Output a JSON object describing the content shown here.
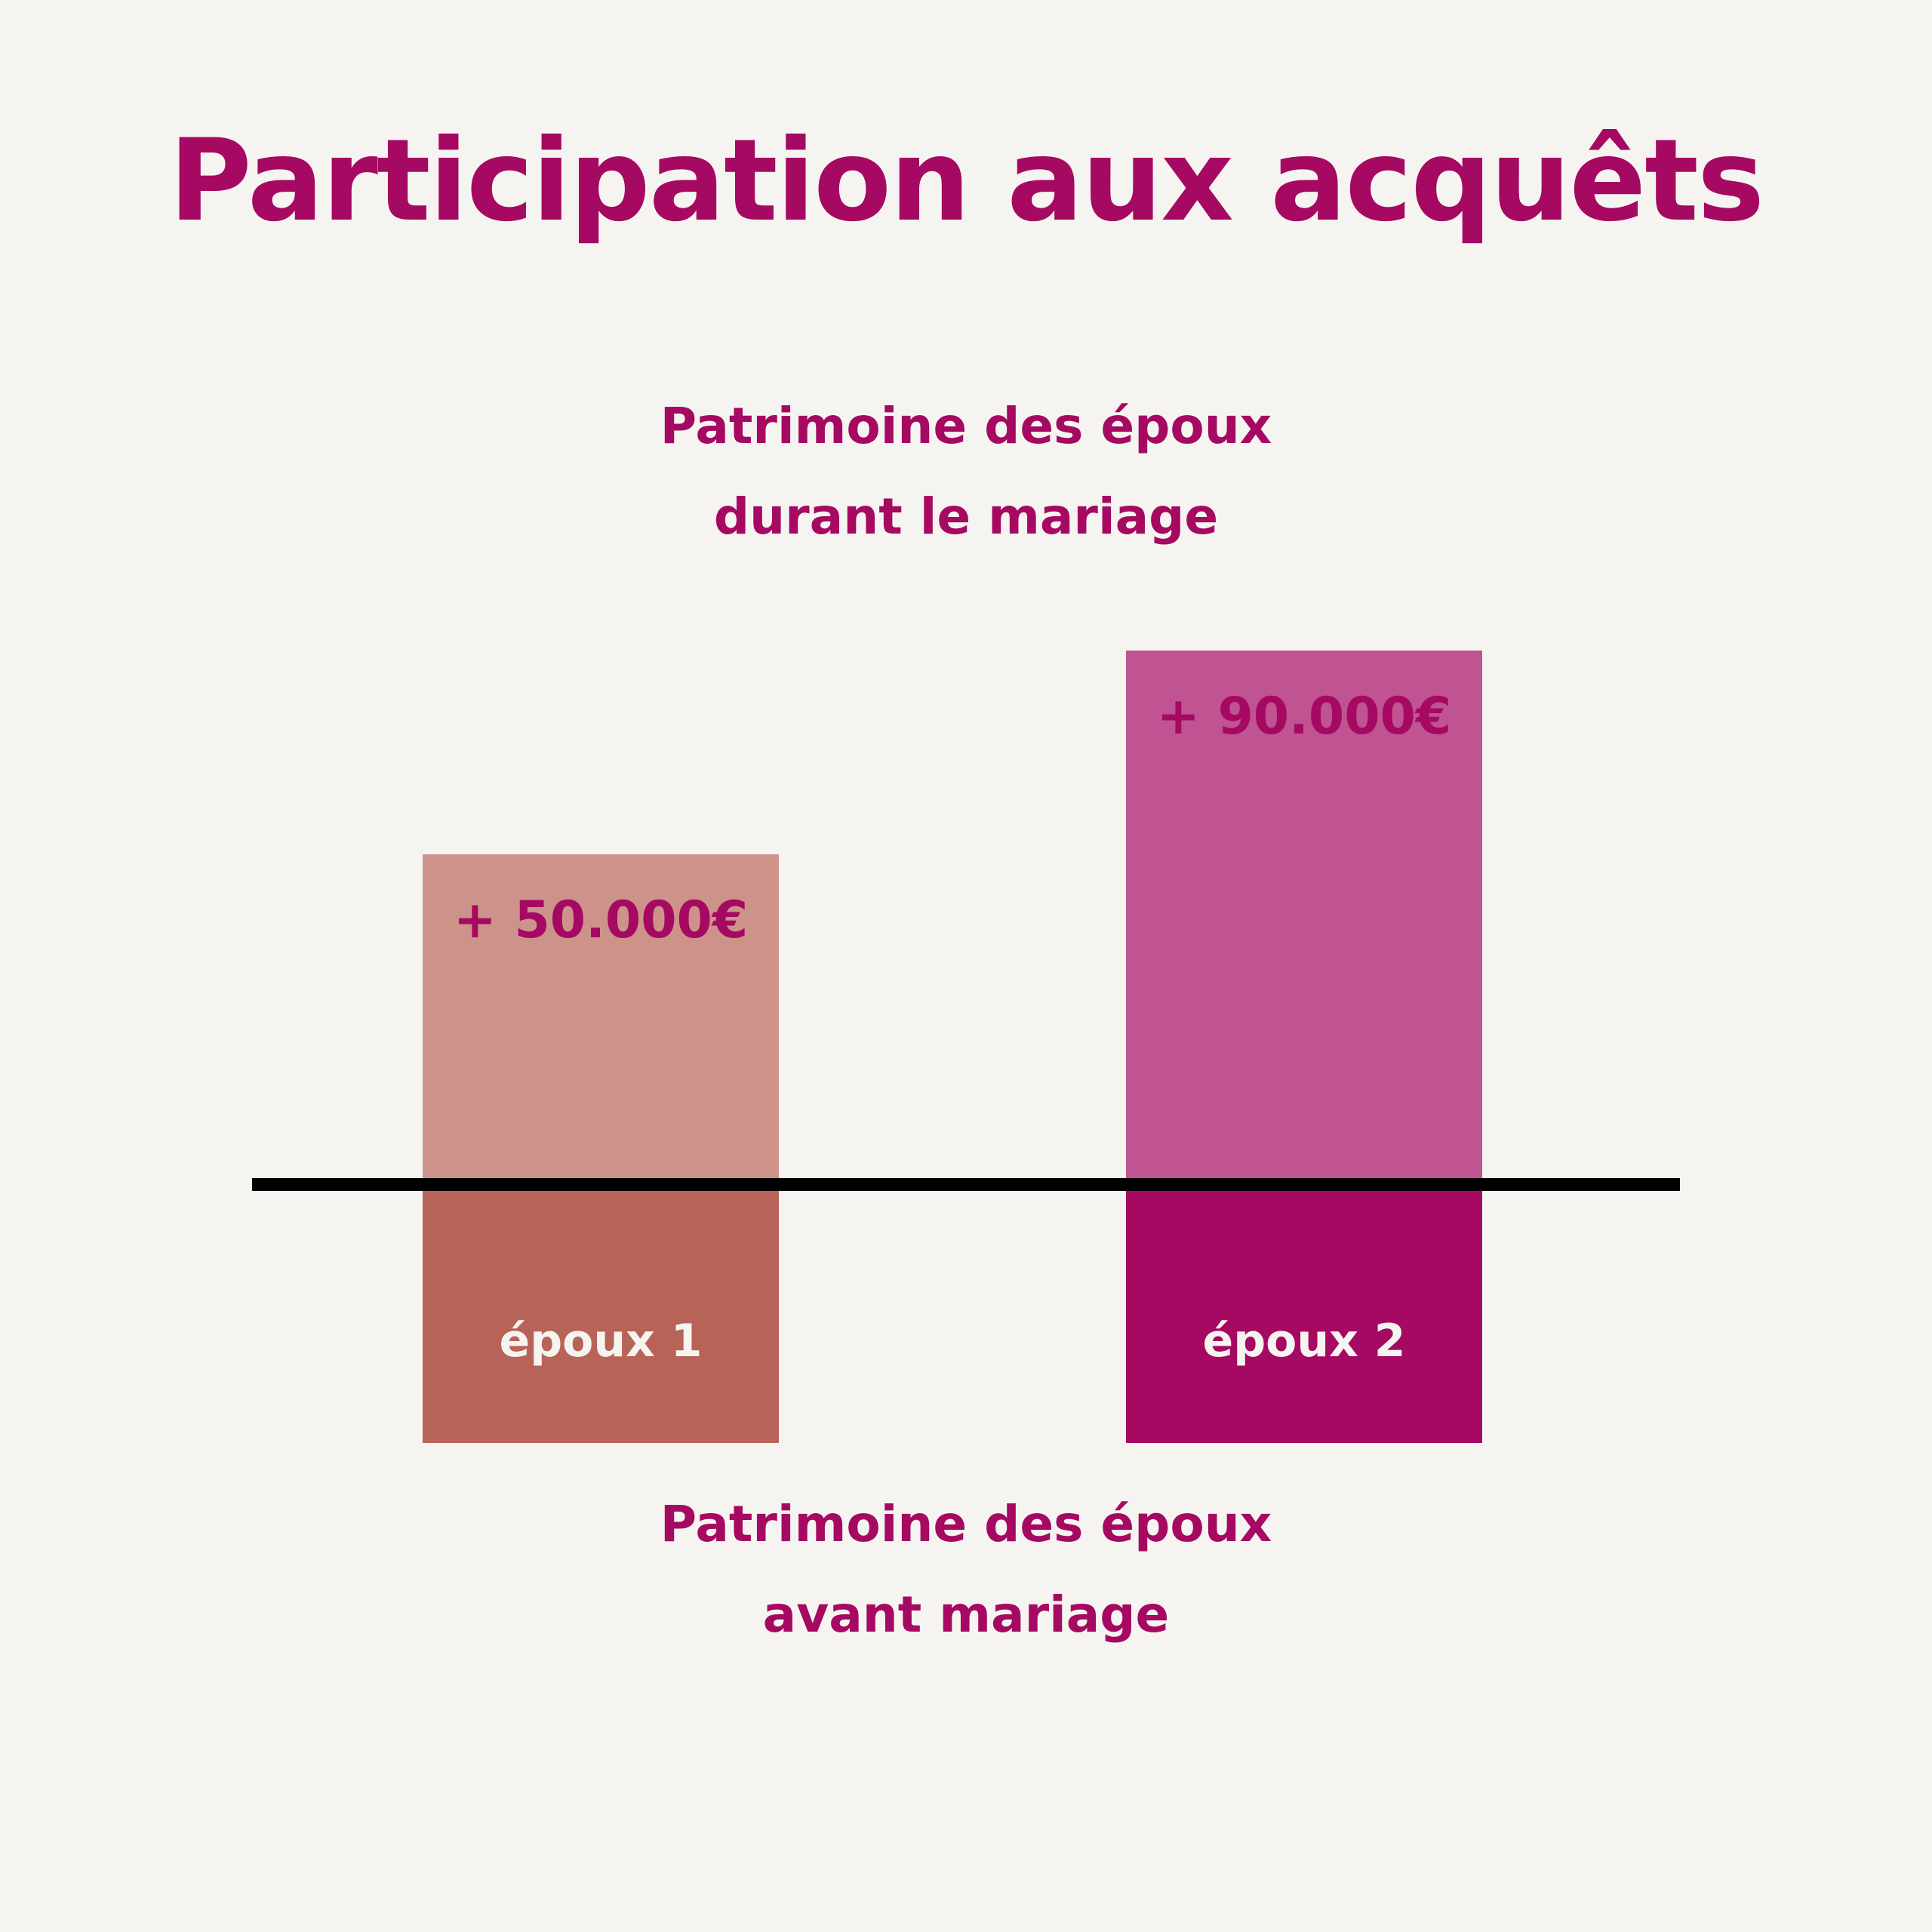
{
  "title": "Participation aux acquêts",
  "caption_top": {
    "line1": "Patrimoine des époux",
    "line2": "durant le mariage"
  },
  "caption_bottom": {
    "line1": "Patrimoine des époux",
    "line2": "avant mariage"
  },
  "colors": {
    "accent": "#a50962",
    "background": "#f5f4f1",
    "spouse1_before": "#b86358",
    "spouse1_during": "#cd938b",
    "spouse2_before": "#a50962",
    "spouse2_during": "#c05391",
    "baseline": "#000000"
  },
  "spouses": [
    {
      "label": "époux 1",
      "gain_label": "+ 50.000€",
      "gain_value": 50000
    },
    {
      "label": "époux 2",
      "gain_label": "+ 90.000€",
      "gain_value": 90000
    }
  ]
}
